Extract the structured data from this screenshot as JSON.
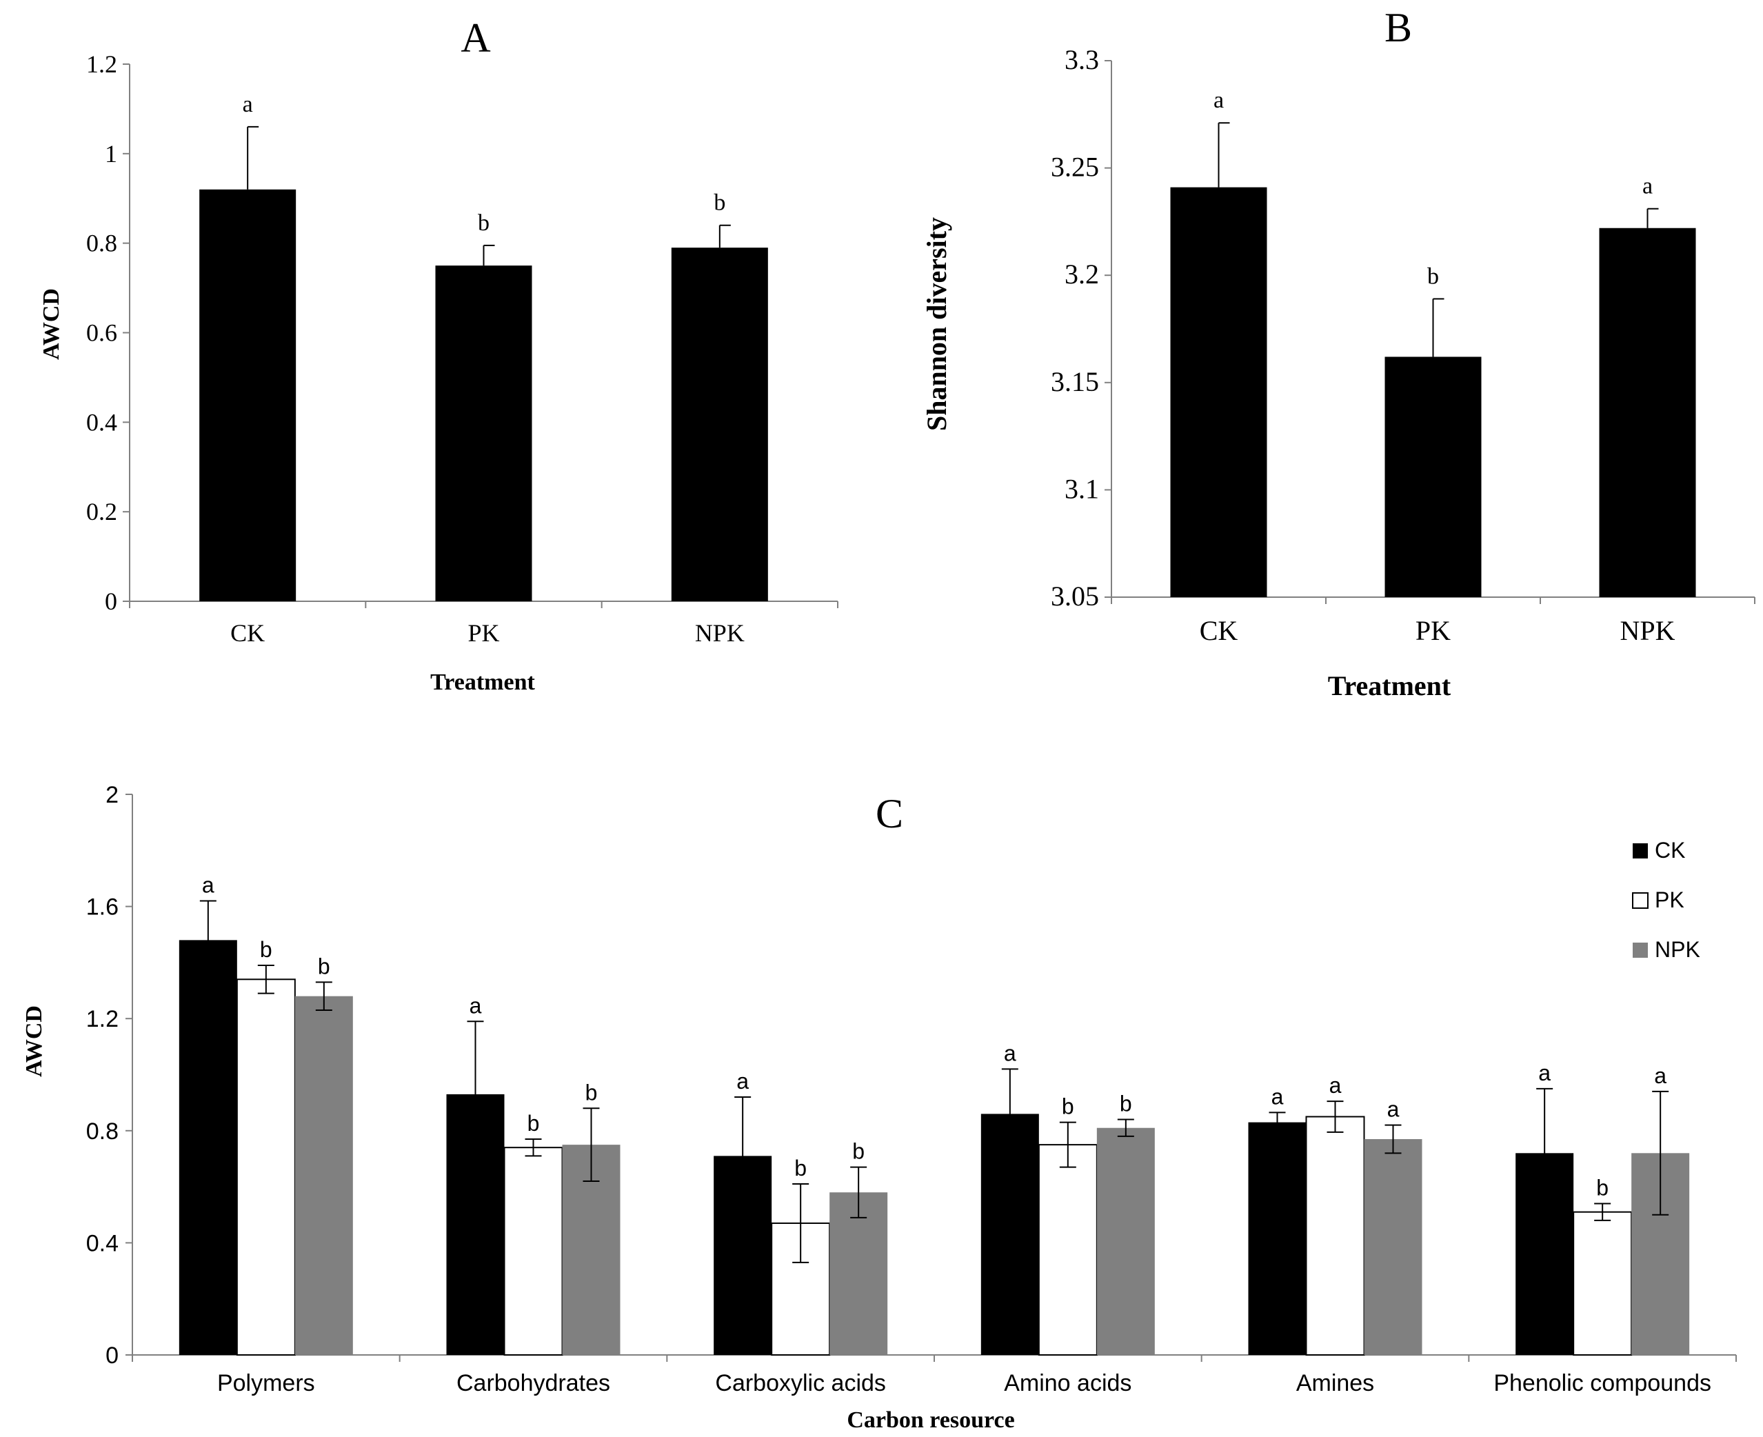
{
  "chart_data": [
    {
      "id": "A",
      "type": "bar",
      "title": "A",
      "xlabel": "Treatment",
      "ylabel": "AWCD",
      "categories": [
        "CK",
        "PK",
        "NPK"
      ],
      "values": [
        0.92,
        0.75,
        0.79
      ],
      "errors": [
        0.14,
        0.045,
        0.05
      ],
      "significance": [
        "a",
        "b",
        "b"
      ],
      "ylim": [
        0,
        1.2
      ],
      "yticks": [
        "0",
        "0.2",
        "0.4",
        "0.6",
        "0.8",
        "1",
        "1.2"
      ],
      "color": "#000000"
    },
    {
      "id": "B",
      "type": "bar",
      "title": "B",
      "xlabel": "Treatment",
      "ylabel": "Shannon diversity",
      "categories": [
        "CK",
        "PK",
        "NPK"
      ],
      "values": [
        3.241,
        3.162,
        3.222
      ],
      "errors": [
        0.03,
        0.027,
        0.009
      ],
      "significance": [
        "a",
        "b",
        "a"
      ],
      "ylim": [
        3.05,
        3.3
      ],
      "yticks": [
        "3.05",
        "3.1",
        "3.15",
        "3.2",
        "3.25",
        "3.3"
      ],
      "color": "#000000"
    },
    {
      "id": "C",
      "type": "bar",
      "title": "C",
      "xlabel": "Carbon resource",
      "ylabel": "AWCD",
      "categories": [
        "Polymers",
        "Carbohydrates",
        "Carboxylic acids",
        "Amino acids",
        "Amines",
        "Phenolic compounds"
      ],
      "series": [
        {
          "name": "CK",
          "color": "#000000",
          "values": [
            1.48,
            0.93,
            0.71,
            0.86,
            0.83,
            0.72
          ],
          "errors": [
            0.14,
            0.26,
            0.21,
            0.16,
            0.035,
            0.23
          ],
          "significance": [
            "a",
            "a",
            "a",
            "a",
            "a",
            "a"
          ]
        },
        {
          "name": "PK",
          "color": "#ffffff",
          "values": [
            1.34,
            0.74,
            0.47,
            0.75,
            0.85,
            0.51
          ],
          "errors": [
            0.05,
            0.03,
            0.14,
            0.08,
            0.055,
            0.03
          ],
          "significance": [
            "b",
            "b",
            "b",
            "b",
            "a",
            "b"
          ]
        },
        {
          "name": "NPK",
          "color": "#808080",
          "values": [
            1.28,
            0.75,
            0.58,
            0.81,
            0.77,
            0.72
          ],
          "errors": [
            0.05,
            0.13,
            0.09,
            0.03,
            0.05,
            0.22
          ],
          "significance": [
            "b",
            "b",
            "b",
            "b",
            "a",
            "a"
          ]
        }
      ],
      "ylim": [
        0,
        2
      ],
      "yticks": [
        "0",
        "0.4",
        "0.8",
        "1.2",
        "1.6",
        "2"
      ],
      "legend": "top-right"
    }
  ]
}
